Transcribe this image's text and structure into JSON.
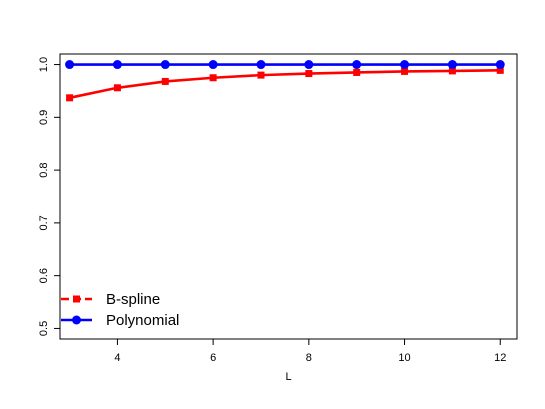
{
  "chart_data": {
    "type": "line",
    "title": "",
    "xlabel": "L",
    "ylabel": "",
    "xlim": [
      2.8,
      12.35
    ],
    "ylim": [
      0.48,
      1.02
    ],
    "x_ticks": [
      4,
      6,
      8,
      10,
      12
    ],
    "x_tick_labels": [
      "4",
      "6",
      "8",
      "10",
      "12"
    ],
    "y_ticks": [
      0.5,
      0.6,
      0.7,
      0.8,
      0.9,
      1.0
    ],
    "y_tick_labels": [
      "0.5",
      "0.6",
      "0.7",
      "0.8",
      "0.9",
      "1.0"
    ],
    "grid": false,
    "legend_position": "bottom-left",
    "x": [
      3,
      4,
      5,
      6,
      7,
      8,
      9,
      10,
      11,
      12
    ],
    "series": [
      {
        "name": "B-spline",
        "color": "#ff0000",
        "line_style": "dashed",
        "marker": "square",
        "values": [
          0.937,
          0.956,
          0.968,
          0.975,
          0.98,
          0.983,
          0.985,
          0.987,
          0.988,
          0.989
        ]
      },
      {
        "name": "Polynomial",
        "color": "#0000ff",
        "line_style": "solid",
        "marker": "circle",
        "values": [
          1.0,
          1.0,
          1.0,
          1.0,
          1.0,
          1.0,
          1.0,
          1.0,
          1.0,
          1.0
        ]
      }
    ]
  }
}
